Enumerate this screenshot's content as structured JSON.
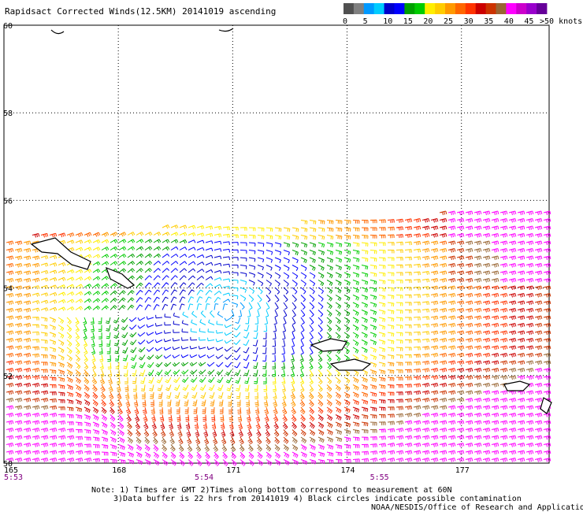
{
  "title": "Rapidsact Corrected Winds(12.5KM) 20141019 ascending",
  "legend": {
    "colors": [
      "#505050",
      "#808080",
      "#0099ff",
      "#00ccff",
      "#0000cc",
      "#0000ff",
      "#00a000",
      "#00cc00",
      "#ffee00",
      "#ffcc00",
      "#ff9900",
      "#ff6600",
      "#ff3300",
      "#cc0000",
      "#cc3300",
      "#996633",
      "#ff00ff",
      "#cc00cc",
      "#9900cc",
      "#660099"
    ],
    "labels": [
      "0",
      "5",
      "10",
      "15",
      "20",
      "25",
      "30",
      "35",
      "40",
      "45",
      ">50 knots"
    ]
  },
  "chart_data": {
    "type": "wind-barb map",
    "title": "Rapidsact Corrected Winds(12.5KM) 20141019 ascending",
    "lat_ticks": [
      "60",
      "58",
      "56",
      "54",
      "52",
      "50"
    ],
    "lon_ticks": [
      "165",
      "168",
      "171",
      "174",
      "177"
    ],
    "time_labels": [
      "5:53",
      "5:54",
      "5:55"
    ],
    "speed_unit": "knots",
    "speed_bins": [
      0,
      5,
      10,
      15,
      20,
      25,
      30,
      35,
      40,
      45,
      50
    ],
    "lat_range": [
      50,
      60
    ],
    "lon_range": [
      165,
      179.3
    ],
    "grid": true,
    "legend_position": "top-right"
  },
  "notes": {
    "line1": "Note: 1) Times are GMT 2)Times along bottom correspond to measurement at 60N",
    "line2": "3)Data buffer is 22 hrs from 20141019 4) Black circles indicate possible contamination",
    "credit": "NOAA/NESDIS/Office of Research and Applications"
  }
}
